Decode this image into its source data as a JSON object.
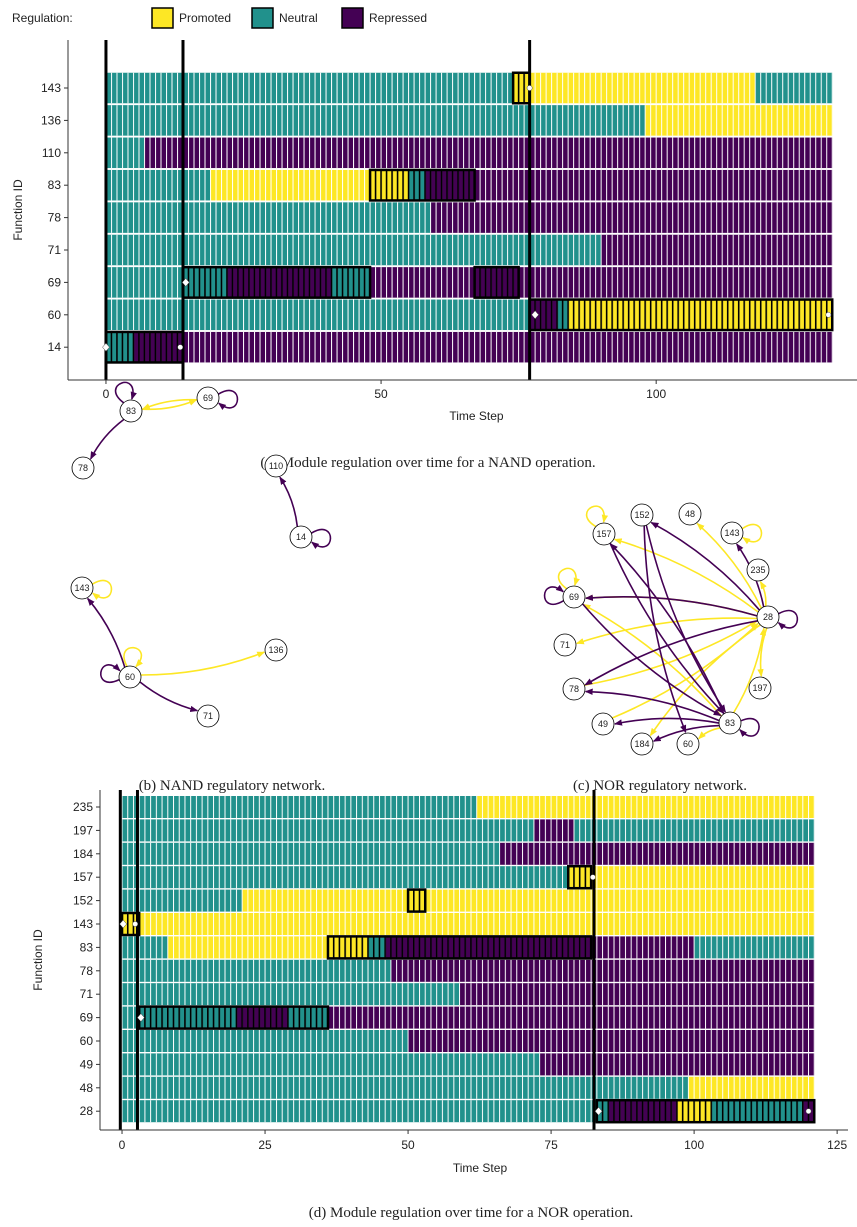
{
  "legend": {
    "title": "Regulation:",
    "states": [
      {
        "name": "Promoted",
        "color": "#fde725"
      },
      {
        "name": "Neutral",
        "color": "#21918c"
      },
      {
        "name": "Repressed",
        "color": "#440154"
      }
    ]
  },
  "chart_data": [
    {
      "type": "timeline",
      "caption": "(a) Module regulation over time for a NAND operation.",
      "xlabel": "Time Step",
      "ylabel": "Function ID",
      "xlim": [
        -6.9,
        136.5
      ],
      "xticks": [
        0,
        50,
        100
      ],
      "rows": [
        {
          "id": 143,
          "segments": [
            {
              "start": 0,
              "end": 74,
              "state": "Neutral"
            },
            {
              "start": 74,
              "end": 118,
              "state": "Promoted"
            },
            {
              "start": 118,
              "end": 132,
              "state": "Neutral"
            }
          ]
        },
        {
          "id": 136,
          "segments": [
            {
              "start": 0,
              "end": 98,
              "state": "Neutral"
            },
            {
              "start": 98,
              "end": 132,
              "state": "Promoted"
            }
          ]
        },
        {
          "id": 110,
          "segments": [
            {
              "start": 0,
              "end": 7,
              "state": "Neutral"
            },
            {
              "start": 7,
              "end": 132,
              "state": "Repressed"
            }
          ]
        },
        {
          "id": 83,
          "segments": [
            {
              "start": 0,
              "end": 19,
              "state": "Neutral"
            },
            {
              "start": 19,
              "end": 55,
              "state": "Promoted"
            },
            {
              "start": 55,
              "end": 58,
              "state": "Neutral"
            },
            {
              "start": 58,
              "end": 132,
              "state": "Repressed"
            }
          ]
        },
        {
          "id": 78,
          "segments": [
            {
              "start": 0,
              "end": 59,
              "state": "Neutral"
            },
            {
              "start": 59,
              "end": 132,
              "state": "Repressed"
            }
          ]
        },
        {
          "id": 71,
          "segments": [
            {
              "start": 0,
              "end": 90,
              "state": "Neutral"
            },
            {
              "start": 90,
              "end": 132,
              "state": "Repressed"
            }
          ]
        },
        {
          "id": 69,
          "segments": [
            {
              "start": 0,
              "end": 22,
              "state": "Neutral"
            },
            {
              "start": 22,
              "end": 41,
              "state": "Repressed"
            },
            {
              "start": 41,
              "end": 48,
              "state": "Neutral"
            },
            {
              "start": 48,
              "end": 132,
              "state": "Repressed"
            }
          ]
        },
        {
          "id": 60,
          "segments": [
            {
              "start": 0,
              "end": 77,
              "state": "Neutral"
            },
            {
              "start": 77,
              "end": 82,
              "state": "Repressed"
            },
            {
              "start": 82,
              "end": 84,
              "state": "Neutral"
            },
            {
              "start": 84,
              "end": 132,
              "state": "Promoted"
            }
          ]
        },
        {
          "id": 14,
          "segments": [
            {
              "start": 0,
              "end": 5,
              "state": "Neutral"
            },
            {
              "start": 5,
              "end": 132,
              "state": "Repressed"
            }
          ]
        }
      ],
      "highlights": [
        {
          "row": 143,
          "start": 74,
          "end": 77
        },
        {
          "row": 83,
          "start": 48,
          "end": 67
        },
        {
          "row": 69,
          "start": 14,
          "end": 48
        },
        {
          "row": 69,
          "start": 67,
          "end": 75
        },
        {
          "row": 60,
          "start": 77,
          "end": 132
        },
        {
          "row": 14,
          "start": 0,
          "end": 14
        }
      ],
      "vlines": [
        0,
        14,
        77
      ],
      "markers": [
        {
          "x": 0,
          "row": 14,
          "shape": "diamond"
        },
        {
          "x": 13.5,
          "row": 14,
          "shape": "dot"
        },
        {
          "x": 14.5,
          "row": 69,
          "shape": "diamond"
        },
        {
          "x": 77,
          "row": 143,
          "shape": "dot"
        },
        {
          "x": 78,
          "row": 60,
          "shape": "diamond"
        },
        {
          "x": 131.3,
          "row": 60,
          "shape": "dot"
        }
      ]
    },
    {
      "type": "timeline",
      "caption": "(d) Module regulation over time for a NOR operation.",
      "xlabel": "Time Step",
      "ylabel": "Function ID",
      "xlim": [
        -3.85,
        126.9
      ],
      "xticks": [
        0,
        25,
        50,
        75,
        100,
        125
      ],
      "rows": [
        {
          "id": 235,
          "segments": [
            {
              "start": 0,
              "end": 62,
              "state": "Neutral"
            },
            {
              "start": 62,
              "end": 121,
              "state": "Promoted"
            }
          ]
        },
        {
          "id": 197,
          "segments": [
            {
              "start": 0,
              "end": 72,
              "state": "Neutral"
            },
            {
              "start": 72,
              "end": 79,
              "state": "Repressed"
            },
            {
              "start": 79,
              "end": 121,
              "state": "Neutral"
            }
          ]
        },
        {
          "id": 184,
          "segments": [
            {
              "start": 0,
              "end": 66,
              "state": "Neutral"
            },
            {
              "start": 66,
              "end": 121,
              "state": "Repressed"
            }
          ]
        },
        {
          "id": 157,
          "segments": [
            {
              "start": 0,
              "end": 78,
              "state": "Neutral"
            },
            {
              "start": 78,
              "end": 121,
              "state": "Promoted"
            }
          ]
        },
        {
          "id": 152,
          "segments": [
            {
              "start": 0,
              "end": 21,
              "state": "Neutral"
            },
            {
              "start": 21,
              "end": 121,
              "state": "Promoted"
            }
          ]
        },
        {
          "id": 143,
          "segments": [
            {
              "start": 0,
              "end": 121,
              "state": "Promoted"
            }
          ]
        },
        {
          "id": 83,
          "segments": [
            {
              "start": 0,
              "end": 8,
              "state": "Neutral"
            },
            {
              "start": 8,
              "end": 43,
              "state": "Promoted"
            },
            {
              "start": 43,
              "end": 46,
              "state": "Neutral"
            },
            {
              "start": 46,
              "end": 100,
              "state": "Repressed"
            },
            {
              "start": 100,
              "end": 121,
              "state": "Neutral"
            }
          ]
        },
        {
          "id": 78,
          "segments": [
            {
              "start": 0,
              "end": 47,
              "state": "Neutral"
            },
            {
              "start": 47,
              "end": 121,
              "state": "Repressed"
            }
          ]
        },
        {
          "id": 71,
          "segments": [
            {
              "start": 0,
              "end": 59,
              "state": "Neutral"
            },
            {
              "start": 59,
              "end": 121,
              "state": "Repressed"
            }
          ]
        },
        {
          "id": 69,
          "segments": [
            {
              "start": 0,
              "end": 20,
              "state": "Neutral"
            },
            {
              "start": 20,
              "end": 29,
              "state": "Repressed"
            },
            {
              "start": 29,
              "end": 36,
              "state": "Neutral"
            },
            {
              "start": 36,
              "end": 121,
              "state": "Repressed"
            }
          ]
        },
        {
          "id": 60,
          "segments": [
            {
              "start": 0,
              "end": 50,
              "state": "Neutral"
            },
            {
              "start": 50,
              "end": 121,
              "state": "Repressed"
            }
          ]
        },
        {
          "id": 49,
          "segments": [
            {
              "start": 0,
              "end": 73,
              "state": "Neutral"
            },
            {
              "start": 73,
              "end": 121,
              "state": "Repressed"
            }
          ]
        },
        {
          "id": 48,
          "segments": [
            {
              "start": 0,
              "end": 99,
              "state": "Neutral"
            },
            {
              "start": 99,
              "end": 121,
              "state": "Promoted"
            }
          ]
        },
        {
          "id": 28,
          "segments": [
            {
              "start": 0,
              "end": 85,
              "state": "Neutral"
            },
            {
              "start": 85,
              "end": 97,
              "state": "Repressed"
            },
            {
              "start": 97,
              "end": 103,
              "state": "Promoted"
            },
            {
              "start": 103,
              "end": 119,
              "state": "Neutral"
            },
            {
              "start": 119,
              "end": 121,
              "state": "Repressed"
            }
          ]
        }
      ],
      "highlights": [
        {
          "row": 157,
          "start": 78,
          "end": 82
        },
        {
          "row": 152,
          "start": 50,
          "end": 53
        },
        {
          "row": 143,
          "start": 0,
          "end": 3
        },
        {
          "row": 83,
          "start": 36,
          "end": 82
        },
        {
          "row": 69,
          "start": 3,
          "end": 36
        },
        {
          "row": 28,
          "start": 83,
          "end": 121
        }
      ],
      "vlines": [
        -0.3,
        2.7,
        82.5
      ],
      "markers": [
        {
          "x": 0.2,
          "row": 143,
          "shape": "diamond"
        },
        {
          "x": 2.3,
          "row": 143,
          "shape": "dot"
        },
        {
          "x": 3.3,
          "row": 69,
          "shape": "diamond"
        },
        {
          "x": 82.3,
          "row": 157,
          "shape": "dot"
        },
        {
          "x": 83.3,
          "row": 28,
          "shape": "diamond"
        },
        {
          "x": 120,
          "row": 28,
          "shape": "dot"
        }
      ]
    }
  ],
  "networks": [
    {
      "caption": "(b) NAND regulatory network.",
      "nodes": [
        83,
        69,
        78,
        110,
        14,
        143,
        60,
        136,
        71
      ],
      "edges": [
        {
          "from": 83,
          "to": 83,
          "type": "Repressed"
        },
        {
          "from": 69,
          "to": 69,
          "type": "Repressed"
        },
        {
          "from": 14,
          "to": 14,
          "type": "Repressed"
        },
        {
          "from": 143,
          "to": 143,
          "type": "Promoted"
        },
        {
          "from": 60,
          "to": 60,
          "type": "Promoted"
        },
        {
          "from": 60,
          "to": 60,
          "type": "Repressed"
        },
        {
          "from": 83,
          "to": 69,
          "type": "Promoted"
        },
        {
          "from": 69,
          "to": 83,
          "type": "Promoted"
        },
        {
          "from": 83,
          "to": 78,
          "type": "Repressed"
        },
        {
          "from": 14,
          "to": 110,
          "type": "Repressed"
        },
        {
          "from": 60,
          "to": 143,
          "type": "Repressed"
        },
        {
          "from": 60,
          "to": 136,
          "type": "Promoted"
        },
        {
          "from": 60,
          "to": 71,
          "type": "Repressed"
        }
      ]
    },
    {
      "caption": "(c) NOR regulatory network.",
      "nodes": [
        152,
        48,
        157,
        143,
        235,
        69,
        28,
        71,
        197,
        78,
        83,
        49,
        184,
        60
      ],
      "edges": [
        {
          "from": 28,
          "to": 28,
          "type": "Repressed"
        },
        {
          "from": 83,
          "to": 83,
          "type": "Repressed"
        },
        {
          "from": 69,
          "to": 69,
          "type": "Promoted"
        },
        {
          "from": 69,
          "to": 69,
          "type": "Repressed"
        },
        {
          "from": 157,
          "to": 157,
          "type": "Promoted"
        },
        {
          "from": 143,
          "to": 143,
          "type": "Promoted"
        },
        {
          "from": 28,
          "to": 69,
          "type": "Promoted"
        },
        {
          "from": 28,
          "to": 71,
          "type": "Promoted"
        },
        {
          "from": 28,
          "to": 157,
          "type": "Promoted"
        },
        {
          "from": 28,
          "to": 48,
          "type": "Promoted"
        },
        {
          "from": 28,
          "to": 235,
          "type": "Promoted"
        },
        {
          "from": 28,
          "to": 197,
          "type": "Promoted"
        },
        {
          "from": 28,
          "to": 184,
          "type": "Promoted"
        },
        {
          "from": 83,
          "to": 69,
          "type": "Promoted"
        },
        {
          "from": 83,
          "to": 28,
          "type": "Promoted"
        },
        {
          "from": 83,
          "to": 60,
          "type": "Promoted"
        },
        {
          "from": 49,
          "to": 28,
          "type": "Promoted"
        },
        {
          "from": 78,
          "to": 28,
          "type": "Promoted"
        },
        {
          "from": 28,
          "to": 152,
          "type": "Repressed"
        },
        {
          "from": 28,
          "to": 143,
          "type": "Repressed"
        },
        {
          "from": 28,
          "to": 78,
          "type": "Repressed"
        },
        {
          "from": 28,
          "to": 69,
          "type": "Repressed"
        },
        {
          "from": 152,
          "to": 83,
          "type": "Repressed"
        },
        {
          "from": 152,
          "to": 60,
          "type": "Repressed"
        },
        {
          "from": 157,
          "to": 83,
          "type": "Repressed"
        },
        {
          "from": 83,
          "to": 157,
          "type": "Repressed"
        },
        {
          "from": 83,
          "to": 78,
          "type": "Repressed"
        },
        {
          "from": 83,
          "to": 184,
          "type": "Repressed"
        },
        {
          "from": 83,
          "to": 49,
          "type": "Repressed"
        },
        {
          "from": 69,
          "to": 83,
          "type": "Repressed"
        }
      ]
    }
  ]
}
